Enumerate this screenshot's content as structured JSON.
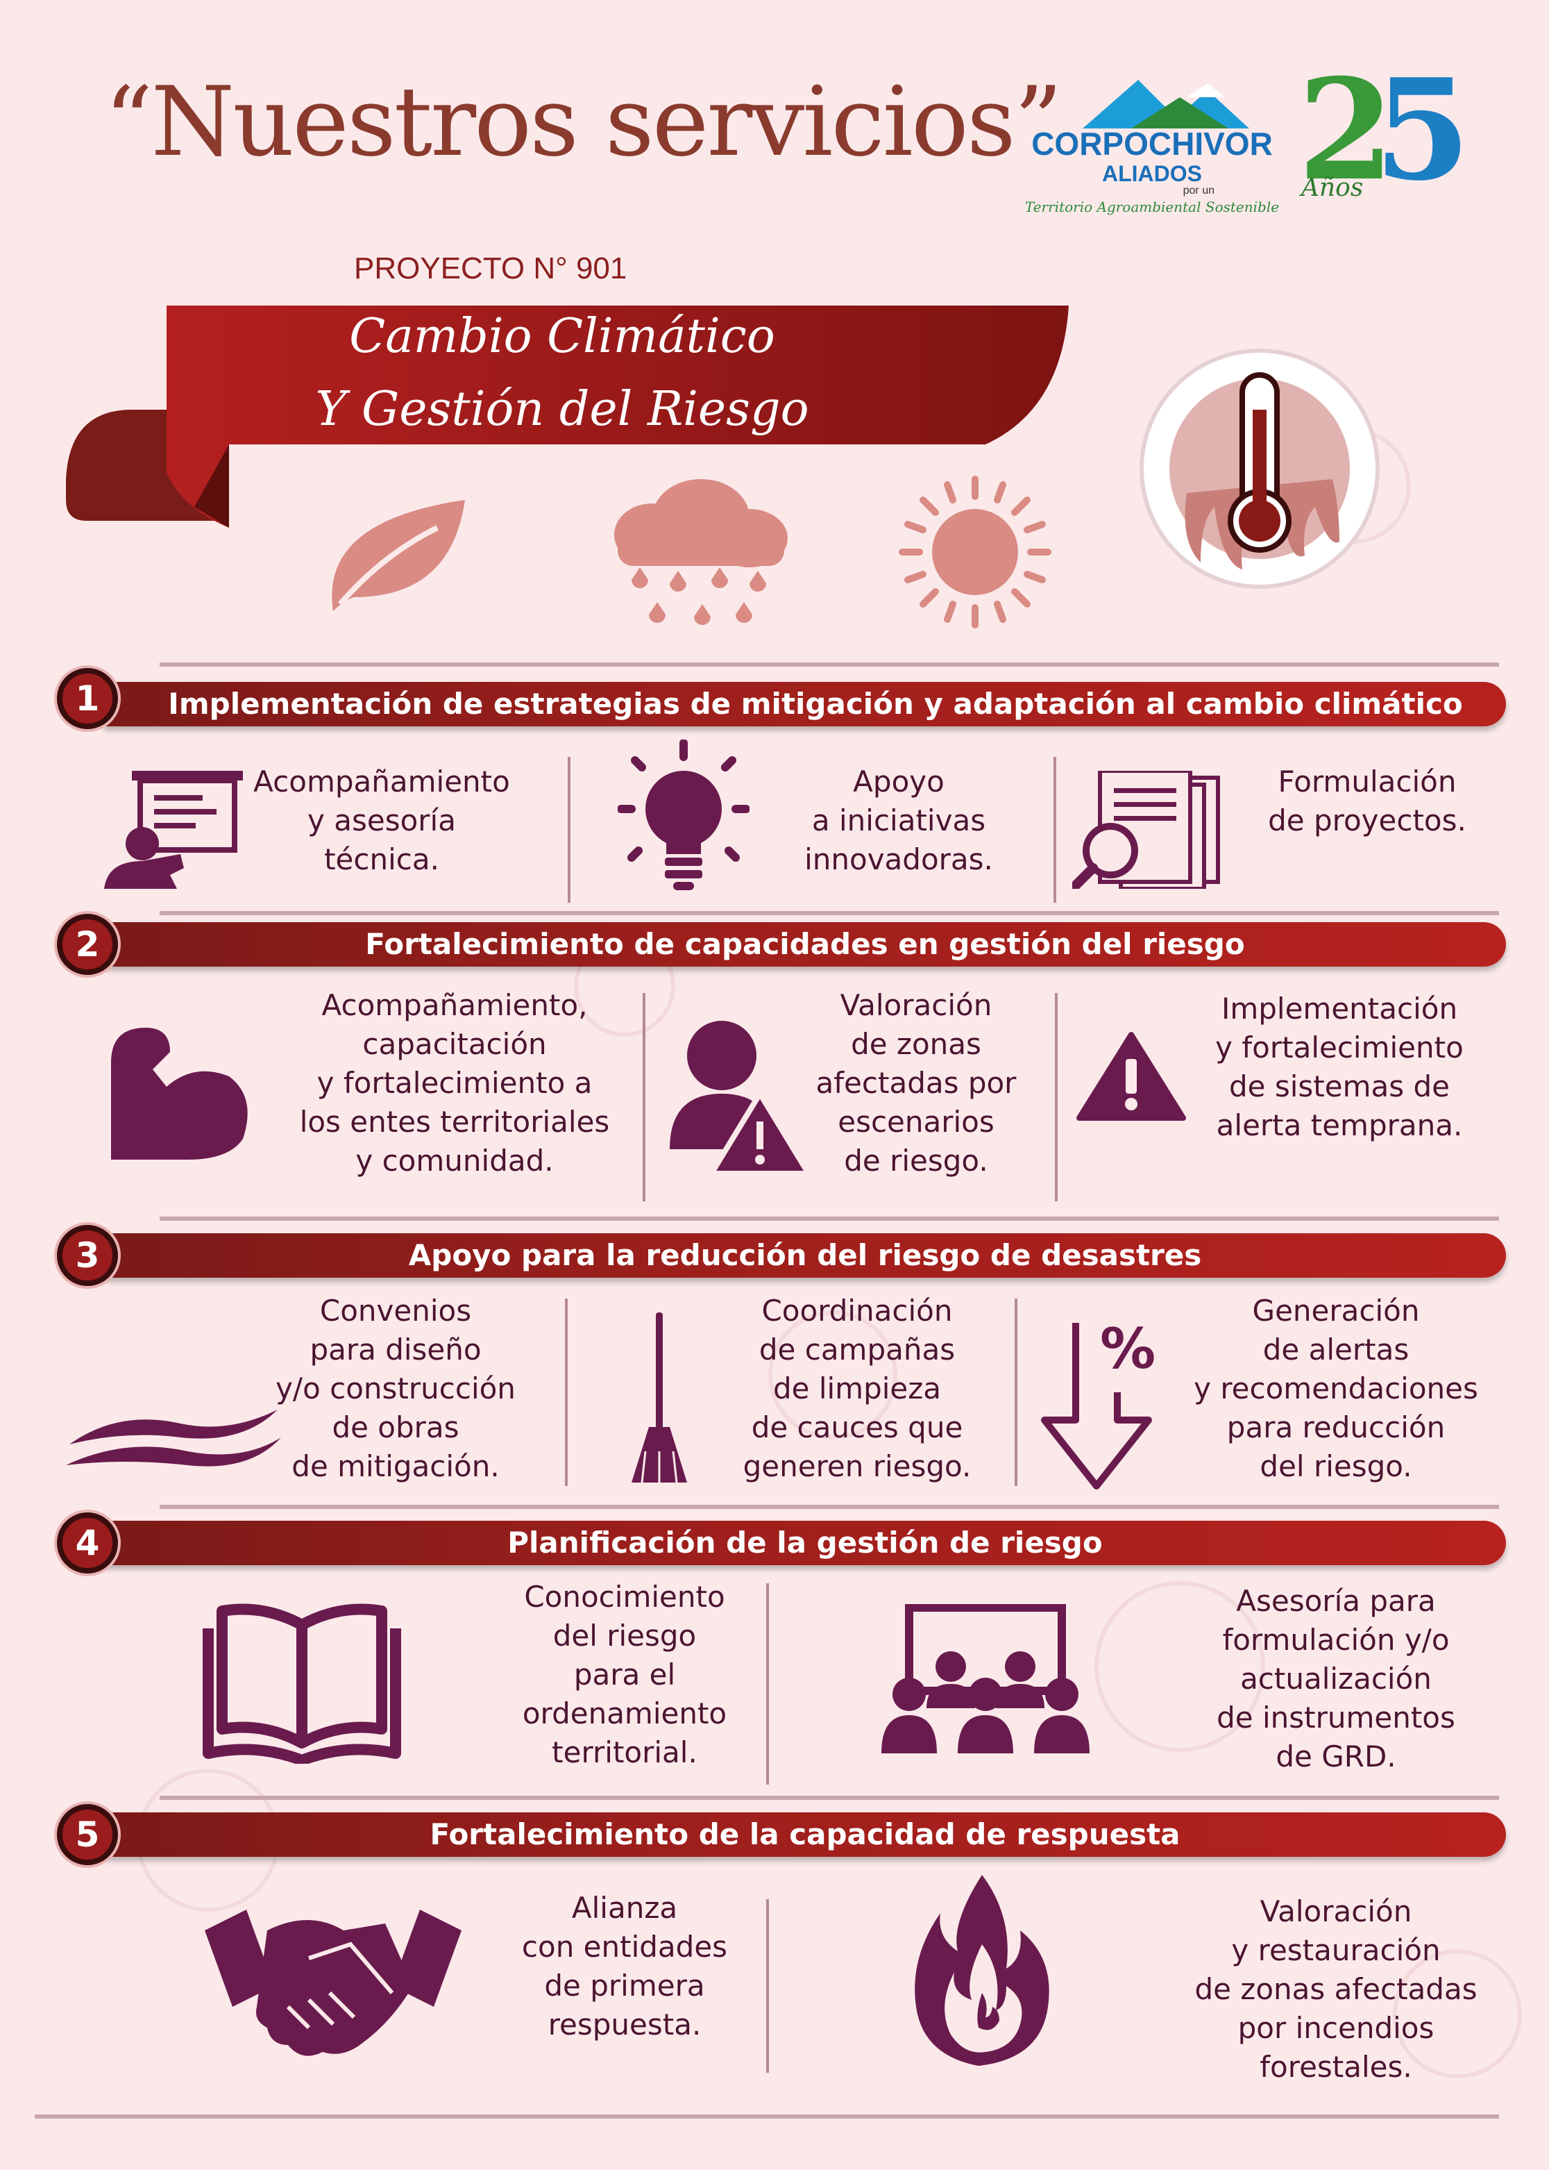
{
  "header": {
    "title": "“Nuestros servicios”",
    "project": "PROYECTO N° 901",
    "banner_line1": "Cambio Climático",
    "banner_line2": "Y Gestión del Riesgo"
  },
  "logos": {
    "corpochivor": "CORPOCHIVOR",
    "aliados": "ALIADOS",
    "por_un": "por un",
    "territorio": "Territorio Agroambiental Sostenible",
    "anos": "Años"
  },
  "colors": {
    "primary": "#9c1f1c",
    "icon": "#6a1b4d",
    "text": "#4a1430",
    "title": "#8a3b2e"
  },
  "sections": [
    {
      "number": "1",
      "title": "Implementación de estrategias de mitigación y adaptación al cambio climático",
      "items": [
        {
          "icon": "teacher-board-icon",
          "text": "Acompañamiento\ny asesoría\ntécnica."
        },
        {
          "icon": "lightbulb-icon",
          "text": "Apoyo\na iniciativas\ninnovadoras."
        },
        {
          "icon": "documents-magnifier-icon",
          "text": "Formulación\nde proyectos."
        }
      ]
    },
    {
      "number": "2",
      "title": "Fortalecimiento de capacidades en gestión del riesgo",
      "items": [
        {
          "icon": "flexed-arm-icon",
          "text": "Acompañamiento,\ncapacitación\ny fortalecimiento a\nlos entes territoriales\ny comunidad."
        },
        {
          "icon": "person-warning-icon",
          "text": "Valoración\nde zonas\nafectadas por\nescenarios\nde riesgo."
        },
        {
          "icon": "warning-triangle-icon",
          "text": "Implementación\ny fortalecimiento\nde sistemas de\nalerta temprana."
        }
      ]
    },
    {
      "number": "3",
      "title": "Apoyo para la reducción del riesgo de desastres",
      "items": [
        {
          "icon": "wave-icon",
          "text": "Convenios\npara diseño\ny/o construcción\nde obras\nde mitigación."
        },
        {
          "icon": "broom-icon",
          "text": "Coordinación\nde campañas\nde limpieza\nde cauces que\ngeneren riesgo."
        },
        {
          "icon": "percent-down-arrow-icon",
          "text": "Generación\nde alertas\ny recomendaciones\npara reducción\ndel riesgo."
        }
      ]
    },
    {
      "number": "4",
      "title": "Planificación de la gestión de riesgo",
      "items": [
        {
          "icon": "open-book-icon",
          "text": "Conocimiento\ndel riesgo\npara el\nordenamiento\nterritorial."
        },
        {
          "icon": "audience-board-icon",
          "text": "Asesoría para\nformulación y/o\nactualización\nde instrumentos\nde GRD."
        }
      ]
    },
    {
      "number": "5",
      "title": "Fortalecimiento de la capacidad de respuesta",
      "items": [
        {
          "icon": "handshake-icon",
          "text": "Alianza\ncon entidades\nde primera\nrespuesta."
        },
        {
          "icon": "fire-icon",
          "text": "Valoración\ny restauración\nde zonas afectadas\npor incendios\nforestales."
        }
      ]
    }
  ]
}
